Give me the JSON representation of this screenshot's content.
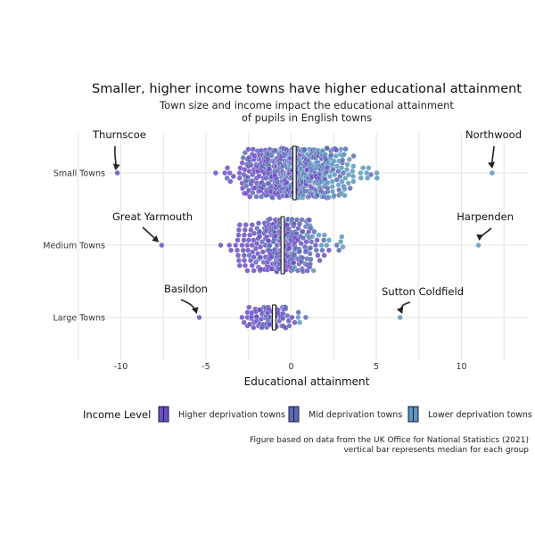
{
  "chart_data": {
    "type": "scatter",
    "subtype": "beeswarm",
    "title": "Smaller, higher income towns have higher educational attainment",
    "subtitle": [
      "Town size and income impact the educational attainment",
      "of pupils in English towns"
    ],
    "xlabel": "Educational attainment",
    "ylabel": "",
    "xlim": [
      -12.5,
      13
    ],
    "xticks": [
      -10,
      -5,
      0,
      5,
      10
    ],
    "grid": true,
    "categories": [
      "Small Towns",
      "Medium Towns",
      "Large Towns"
    ],
    "medians": [
      {
        "category": "Small Towns",
        "value": 0.2
      },
      {
        "category": "Medium Towns",
        "value": -0.5
      },
      {
        "category": "Large Towns",
        "value": -1.0
      }
    ],
    "ranges": [
      {
        "category": "Small Towns",
        "min": -10.2,
        "max": 11.8
      },
      {
        "category": "Medium Towns",
        "min": -7.6,
        "max": 11.0
      },
      {
        "category": "Large Towns",
        "min": -5.4,
        "max": 6.4
      }
    ],
    "series": [
      {
        "name": "Higher deprivation towns",
        "color": "#6a4fc4"
      },
      {
        "name": "Mid deprivation towns",
        "color": "#5b6bb5"
      },
      {
        "name": "Lower deprivation towns",
        "color": "#5a97bd"
      }
    ],
    "annotations": [
      {
        "label": "Thurnscoe",
        "category": "Small Towns",
        "value": -10.2
      },
      {
        "label": "Northwood",
        "category": "Small Towns",
        "value": 11.8
      },
      {
        "label": "Great Yarmouth",
        "category": "Medium Towns",
        "value": -7.6
      },
      {
        "label": "Harpenden",
        "category": "Medium Towns",
        "value": 11.0
      },
      {
        "label": "Basildon",
        "category": "Large Towns",
        "value": -5.4
      },
      {
        "label": "Sutton Coldfield",
        "category": "Large Towns",
        "value": 6.4
      }
    ],
    "legend": {
      "title": "Income Level",
      "position": "bottom"
    },
    "caption": [
      "Figure based on data from the UK Office for National Statistics (2021)",
      "vertical bar represents median for each group"
    ]
  }
}
